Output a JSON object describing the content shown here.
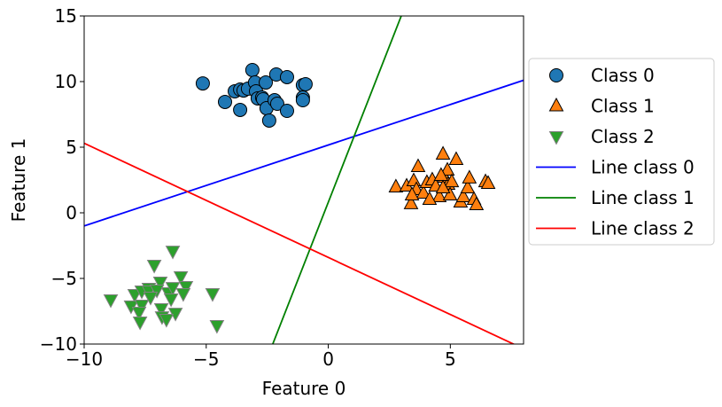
{
  "chart_data": {
    "type": "scatter",
    "xlabel": "Feature 0",
    "ylabel": "Feature 1",
    "xlim": [
      -10,
      8
    ],
    "ylim": [
      -10,
      15
    ],
    "xticks": [
      -10,
      -5,
      0,
      5
    ],
    "yticks": [
      -10,
      -5,
      0,
      5,
      10,
      15
    ],
    "grid": false,
    "legend_placement": "outside-right",
    "series": [
      {
        "name": "Class 0",
        "marker": "circle",
        "color": "#1f77b4",
        "points": [
          [
            -5.14,
            9.86
          ],
          [
            -4.23,
            8.45
          ],
          [
            -3.83,
            9.26
          ],
          [
            -3.61,
            9.39
          ],
          [
            -3.47,
            9.32
          ],
          [
            -3.61,
            7.84
          ],
          [
            -3.29,
            9.46
          ],
          [
            -3.11,
            10.88
          ],
          [
            -3.0,
            9.93
          ],
          [
            -2.96,
            9.26
          ],
          [
            -2.89,
            8.72
          ],
          [
            -2.71,
            8.78
          ],
          [
            -2.56,
            9.93
          ],
          [
            -2.67,
            8.65
          ],
          [
            -2.53,
            7.97
          ],
          [
            -2.42,
            7.03
          ],
          [
            -2.2,
            8.58
          ],
          [
            -2.13,
            10.54
          ],
          [
            -2.09,
            8.31
          ],
          [
            -1.69,
            10.34
          ],
          [
            -1.04,
            9.73
          ],
          [
            -1.04,
            8.78
          ],
          [
            -0.93,
            9.8
          ],
          [
            -1.69,
            7.77
          ],
          [
            -1.04,
            8.58
          ]
        ]
      },
      {
        "name": "Class 1",
        "marker": "triangle-up",
        "color": "#ff7f0e",
        "points": [
          [
            2.77,
            1.96
          ],
          [
            3.21,
            2.03
          ],
          [
            3.5,
            2.43
          ],
          [
            3.61,
            1.76
          ],
          [
            3.68,
            3.51
          ],
          [
            3.9,
            1.49
          ],
          [
            4.04,
            2.3
          ],
          [
            3.39,
            0.68
          ],
          [
            4.26,
            2.5
          ],
          [
            4.4,
            2.03
          ],
          [
            4.55,
            1.22
          ],
          [
            4.7,
            4.46
          ],
          [
            4.77,
            2.7
          ],
          [
            4.88,
            3.24
          ],
          [
            4.91,
            2.16
          ],
          [
            4.99,
            1.35
          ],
          [
            5.06,
            2.36
          ],
          [
            5.24,
            4.05
          ],
          [
            5.42,
            0.81
          ],
          [
            5.53,
            1.22
          ],
          [
            5.71,
            1.89
          ],
          [
            5.78,
            2.64
          ],
          [
            5.97,
            1.01
          ],
          [
            6.07,
            0.61
          ],
          [
            6.44,
            2.36
          ],
          [
            6.55,
            2.23
          ],
          [
            4.15,
            1.01
          ],
          [
            3.43,
            1.35
          ],
          [
            4.62,
            2.84
          ],
          [
            4.7,
            1.89
          ]
        ]
      },
      {
        "name": "Class 2",
        "marker": "triangle-down",
        "color": "#2ca02c",
        "points": [
          [
            -6.37,
            -2.91
          ],
          [
            -7.13,
            -3.99
          ],
          [
            -6.04,
            -4.86
          ],
          [
            -6.88,
            -5.27
          ],
          [
            -8.91,
            -6.62
          ],
          [
            -4.74,
            -6.15
          ],
          [
            -7.93,
            -6.22
          ],
          [
            -7.64,
            -5.95
          ],
          [
            -7.35,
            -5.74
          ],
          [
            -7.35,
            -5.95
          ],
          [
            -7.02,
            -5.88
          ],
          [
            -6.55,
            -6.08
          ],
          [
            -6.37,
            -5.68
          ],
          [
            -5.83,
            -5.61
          ],
          [
            -5.94,
            -6.15
          ],
          [
            -8.08,
            -7.09
          ],
          [
            -7.64,
            -7.03
          ],
          [
            -7.75,
            -7.57
          ],
          [
            -6.84,
            -7.3
          ],
          [
            -6.81,
            -7.91
          ],
          [
            -6.26,
            -7.64
          ],
          [
            -7.71,
            -8.31
          ],
          [
            -4.56,
            -8.58
          ],
          [
            -6.44,
            -6.55
          ],
          [
            -7.28,
            -6.42
          ],
          [
            -6.63,
            -8.11
          ]
        ]
      }
    ],
    "lines": [
      {
        "name": "Line class 0",
        "color": "#0000ff",
        "from": [
          -10,
          -1.0
        ],
        "to": [
          8,
          10.1
        ]
      },
      {
        "name": "Line class 1",
        "color": "#008000",
        "from": [
          -3,
          -13.45
        ],
        "to": [
          4,
          19.8
        ]
      },
      {
        "name": "Line class 2",
        "color": "#ff0000",
        "from": [
          -10,
          5.3
        ],
        "to": [
          8,
          -10.36
        ]
      }
    ]
  }
}
